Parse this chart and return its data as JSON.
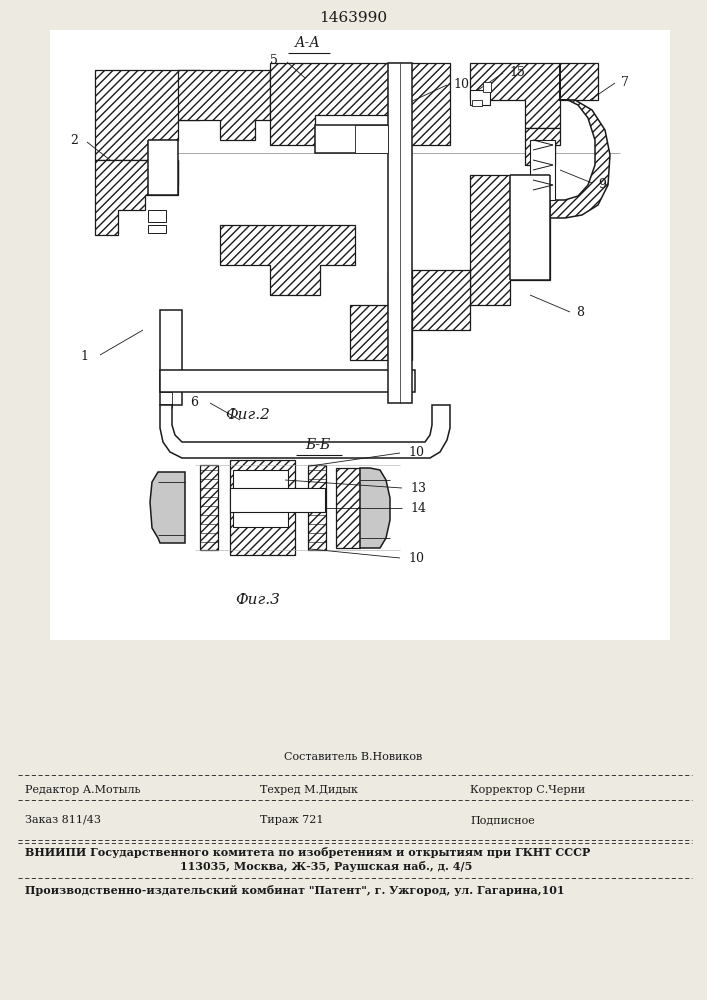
{
  "patent_number": "1463990",
  "fig2_label": "А-А",
  "fig2_caption": "Фиг.2",
  "fig3_label": "Б-Б",
  "fig3_caption": "Фиг.3",
  "bg_color": "#edeae2",
  "line_color": "#1a1a1a",
  "sestavitel": "Составитель В.Новиков",
  "editor": "Редактор А.Мотыль",
  "tehred": "Техред М.Дидык",
  "korrektor": "Корректор С.Черни",
  "zakaz": "Заказ 811/43",
  "tirazh": "Тираж 721",
  "podpisnoe": "Подписное",
  "vniipи1": "ВНИИПИ Государственного комитета по изобретениям и открытиям при ГКНТ СССР",
  "vniipи2": "113035, Москва, Ж-35, Раушская наб., д. 4/5",
  "proizv": "Производственно-издательский комбинат \"Патент\", г. Ужгород, ул. Гагарина,101"
}
